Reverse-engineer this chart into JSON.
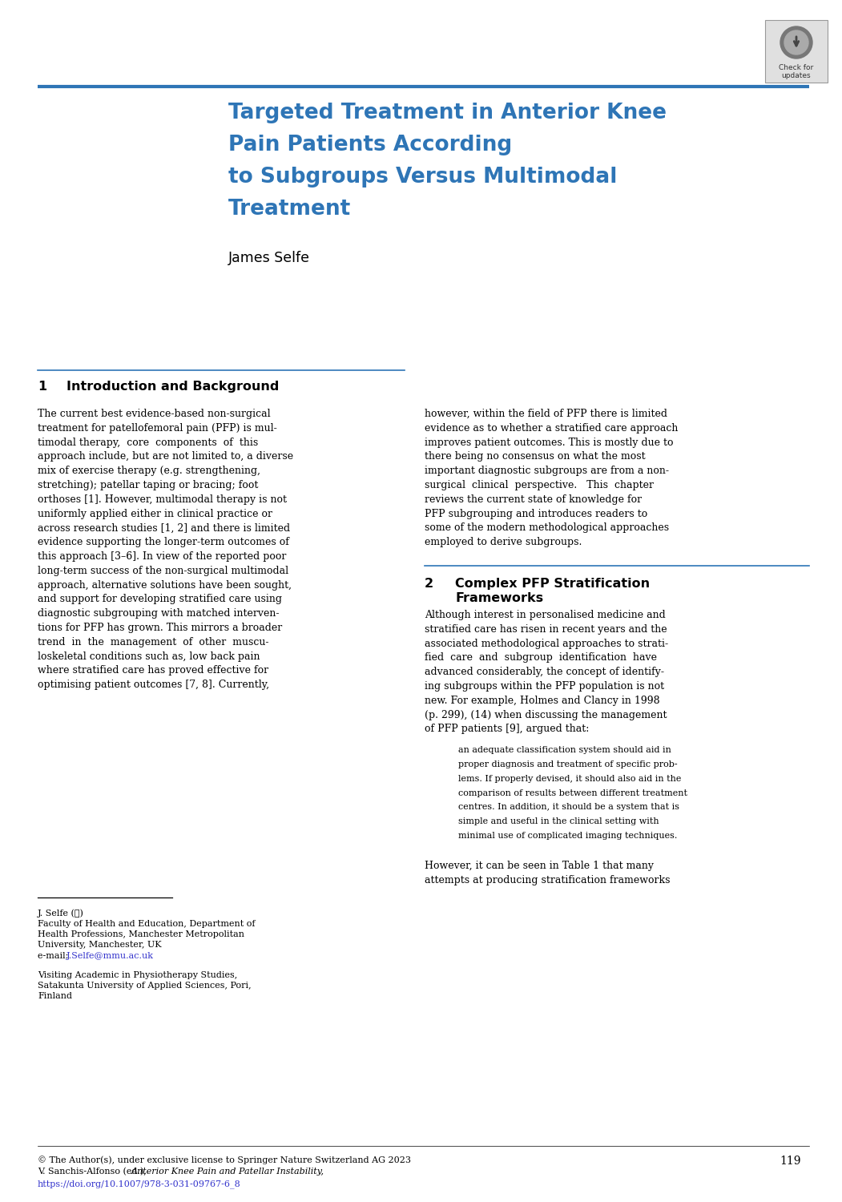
{
  "bg_color": "#ffffff",
  "title_line1": "Targeted Treatment in Anterior Knee",
  "title_line2": "Pain Patients According",
  "title_line3": "to Subgroups Versus Multimodal",
  "title_line4": "Treatment",
  "title_color": "#2E75B6",
  "author": "James Selfe",
  "author_color": "#000000",
  "header_line_color": "#2E75B6",
  "section1_num": "1",
  "section1_title": "Introduction and Background",
  "section2_num": "2",
  "section2_title_line1": "Complex PFP Stratification",
  "section2_title_line2": "Frameworks",
  "section_color": "#000000",
  "left_col_lines": [
    "The current best evidence-based non-surgical",
    "treatment for patellofemoral pain (PFP) is mul-",
    "timodal therapy,  core  components  of  this",
    "approach include, but are not limited to, a diverse",
    "mix of exercise therapy (e.g. strengthening,",
    "stretching); patellar taping or bracing; foot",
    "orthoses [1]. However, multimodal therapy is not",
    "uniformly applied either in clinical practice or",
    "across research studies [1, 2] and there is limited",
    "evidence supporting the longer-term outcomes of",
    "this approach [3–6]. In view of the reported poor",
    "long-term success of the non-surgical multimodal",
    "approach, alternative solutions have been sought,",
    "and support for developing stratified care using",
    "diagnostic subgrouping with matched interven-",
    "tions for PFP has grown. This mirrors a broader",
    "trend  in  the  management  of  other  muscu-",
    "loskeletal conditions such as, low back pain",
    "where stratified care has proved effective for",
    "optimising patient outcomes [7, 8]. Currently,"
  ],
  "right_col1_lines": [
    "however, within the field of PFP there is limited",
    "evidence as to whether a stratified care approach",
    "improves patient outcomes. This is mostly due to",
    "there being no consensus on what the most",
    "important diagnostic subgroups are from a non-",
    "surgical  clinical  perspective.   This  chapter",
    "reviews the current state of knowledge for",
    "PFP subgrouping and introduces readers to",
    "some of the modern methodological approaches",
    "employed to derive subgroups."
  ],
  "right_col2_lines": [
    "Although interest in personalised medicine and",
    "stratified care has risen in recent years and the",
    "associated methodological approaches to strati-",
    "fied  care  and  subgroup  identification  have",
    "advanced considerably, the concept of identify-",
    "ing subgroups within the PFP population is not",
    "new. For example, Holmes and Clancy in 1998",
    "(p. 299), (14) when discussing the management",
    "of PFP patients [9], argued that:"
  ],
  "quote_lines": [
    "an adequate classification system should aid in",
    "proper diagnosis and treatment of specific prob-",
    "lems. If properly devised, it should also aid in the",
    "comparison of results between different treatment",
    "centres. In addition, it should be a system that is",
    "simple and useful in the clinical setting with",
    "minimal use of complicated imaging techniques."
  ],
  "bottom_lines": [
    "However, it can be seen in Table 1 that many",
    "attempts at producing stratification frameworks"
  ],
  "footnote_sep_line": true,
  "footnote_lines": [
    "J. Selfe (✉)",
    "Faculty of Health and Education, Department of",
    "Health Professions, Manchester Metropolitan",
    "University, Manchester, UK"
  ],
  "footnote_email_prefix": "e-mail: ",
  "footnote_email": "J.Selfe@mmu.ac.uk",
  "footnote_email_color": "#3333CC",
  "footnote_lines2": [
    "Visiting Academic in Physiotherapy Studies,",
    "Satakunta University of Applied Sciences, Pori,",
    "Finland"
  ],
  "copyright_line1": "© The Author(s), under exclusive license to Springer Nature Switzerland AG 2023",
  "copyright_line2_prefix": "V. Sanchis-Alfonso (ed.), ",
  "copyright_line2_italic": "Anterior Knee Pain and Patellar Instability,",
  "copyright_line3": "https://doi.org/10.1007/978-3-031-09767-6_8",
  "copyright_url_color": "#3333CC",
  "page_number": "119",
  "text_color": "#000000",
  "font_size_body": 9.0,
  "font_size_title": 19.0,
  "font_size_section": 11.5,
  "font_size_footnote": 8.0,
  "font_size_quote": 8.0,
  "font_size_copyright": 8.0
}
